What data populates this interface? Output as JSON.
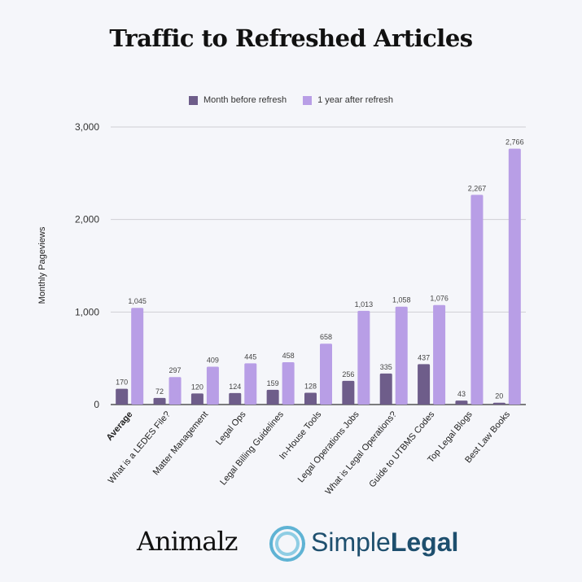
{
  "chart_data": {
    "type": "bar",
    "title": "Traffic to Refreshed Articles",
    "ylabel": "Monthly Pageviews",
    "xlabel": "",
    "ylim": [
      0,
      3000
    ],
    "yticks": [
      0,
      1000,
      2000,
      3000
    ],
    "ytick_labels": [
      "0",
      "1,000",
      "2,000",
      "3,000"
    ],
    "grid": true,
    "legend": "top",
    "categories": [
      "Average",
      "What is a LEDES File?",
      "Matter Management",
      "Legal Ops",
      "Legal Billing Guidelines",
      "In-House Tools",
      "Legal Operations Jobs",
      "What is Legal Operations?",
      "Guide to UTBMS Codes",
      "Top Legal Blogs",
      "Best Law Books"
    ],
    "bold_categories": [
      "Average"
    ],
    "series": [
      {
        "name": "Month before refresh",
        "color": "#6e5d8a",
        "values": [
          170,
          72,
          120,
          124,
          159,
          128,
          256,
          335,
          437,
          43,
          20
        ],
        "labels": [
          "170",
          "72",
          "120",
          "124",
          "159",
          "128",
          "256",
          "335",
          "437",
          "43",
          "20"
        ]
      },
      {
        "name": "1 year after refresh",
        "color": "#b89ee6",
        "values": [
          1045,
          297,
          409,
          445,
          458,
          658,
          1013,
          1058,
          1076,
          2267,
          2766
        ],
        "labels": [
          "1,045",
          "297",
          "409",
          "445",
          "458",
          "658",
          "1,013",
          "1,058",
          "1,076",
          "2,267",
          "2,766"
        ]
      }
    ]
  },
  "logos": {
    "animalz": "Animalz",
    "simplelegal_a": "Simple",
    "simplelegal_b": "Legal"
  }
}
